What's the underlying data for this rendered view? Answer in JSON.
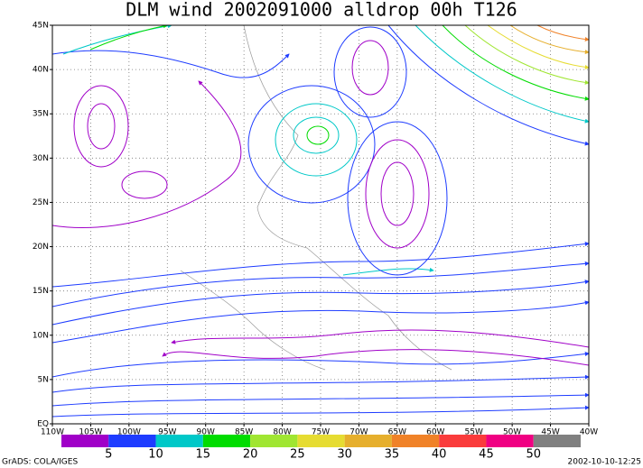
{
  "title": "DLM wind 2002091000 alldrop 00h T126",
  "x_axis": {
    "labels": [
      "110W",
      "105W",
      "100W",
      "95W",
      "90W",
      "85W",
      "80W",
      "75W",
      "70W",
      "65W",
      "60W",
      "55W",
      "50W",
      "45W",
      "40W"
    ]
  },
  "y_axis": {
    "labels": [
      "EQ",
      "5N",
      "10N",
      "15N",
      "20N",
      "25N",
      "30N",
      "35N",
      "40N",
      "45N"
    ]
  },
  "colorbar": {
    "colors": [
      "#a000c8",
      "#1e3cff",
      "#00c8c8",
      "#00dc00",
      "#a0e632",
      "#e6dc32",
      "#e6af2d",
      "#f08228",
      "#fa3c3c",
      "#f00082",
      "#808080"
    ],
    "labels": [
      5,
      10,
      15,
      20,
      25,
      30,
      35,
      40,
      45,
      50
    ]
  },
  "footer": {
    "left": "GrADS: COLA/IGES",
    "right": "2002-10-10-12:25"
  }
}
